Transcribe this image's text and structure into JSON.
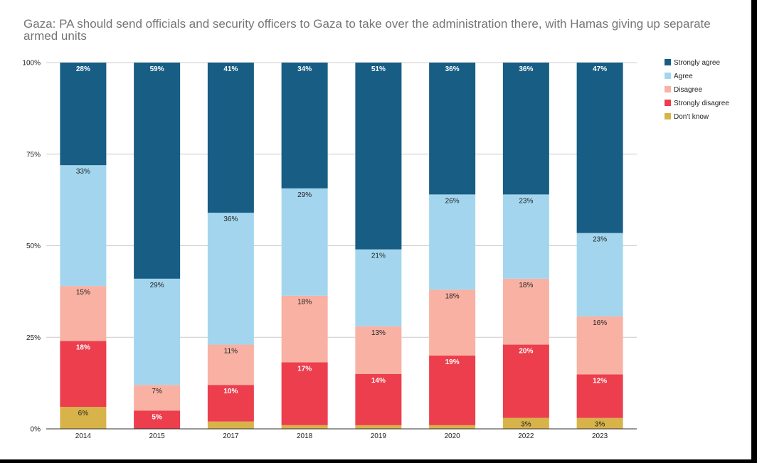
{
  "chart_data": {
    "type": "bar",
    "stacked": true,
    "normalized": true,
    "title": "Gaza: PA should send officials and security officers to Gaza to take over the administration there, with Hamas giving up separate armed units",
    "categories": [
      "2014",
      "2015",
      "2017",
      "2018",
      "2019",
      "2020",
      "2022",
      "2023"
    ],
    "yticks": [
      "0%",
      "25%",
      "50%",
      "75%",
      "100%"
    ],
    "ylim": [
      0,
      100
    ],
    "grid": true,
    "legend_position": "right",
    "series": [
      {
        "name": "Don't know",
        "color": "#d8b34a",
        "values": [
          6,
          0,
          2,
          1,
          1,
          1,
          3,
          3
        ],
        "labels": [
          "6%",
          "",
          "",
          "",
          "",
          "",
          "3%",
          "3%"
        ],
        "label_color": "#222222"
      },
      {
        "name": "Strongly disagree",
        "color": "#ec3e4d",
        "values": [
          18,
          5,
          10,
          17,
          14,
          19,
          20,
          12
        ],
        "labels": [
          "18%",
          "5%",
          "10%",
          "17%",
          "14%",
          "19%",
          "20%",
          "12%"
        ],
        "label_color": "#ffffff"
      },
      {
        "name": "Disagree",
        "color": "#f8b1a3",
        "values": [
          15,
          7,
          11,
          18,
          13,
          18,
          18,
          16
        ],
        "labels": [
          "15%",
          "7%",
          "11%",
          "18%",
          "13%",
          "18%",
          "18%",
          "16%"
        ],
        "label_color": "#222222"
      },
      {
        "name": "Agree",
        "color": "#a3d6ee",
        "values": [
          33,
          29,
          36,
          29,
          21,
          26,
          23,
          23
        ],
        "labels": [
          "33%",
          "29%",
          "36%",
          "29%",
          "21%",
          "26%",
          "23%",
          "23%"
        ],
        "label_color": "#222222"
      },
      {
        "name": "Strongly agree",
        "color": "#175d84",
        "values": [
          28,
          59,
          41,
          34,
          51,
          36,
          36,
          47
        ],
        "labels": [
          "28%",
          "59%",
          "41%",
          "34%",
          "51%",
          "36%",
          "36%",
          "47%"
        ],
        "label_color": "#ffffff"
      }
    ],
    "legend_order": [
      "Strongly agree",
      "Agree",
      "Disagree",
      "Strongly disagree",
      "Don't know"
    ]
  }
}
